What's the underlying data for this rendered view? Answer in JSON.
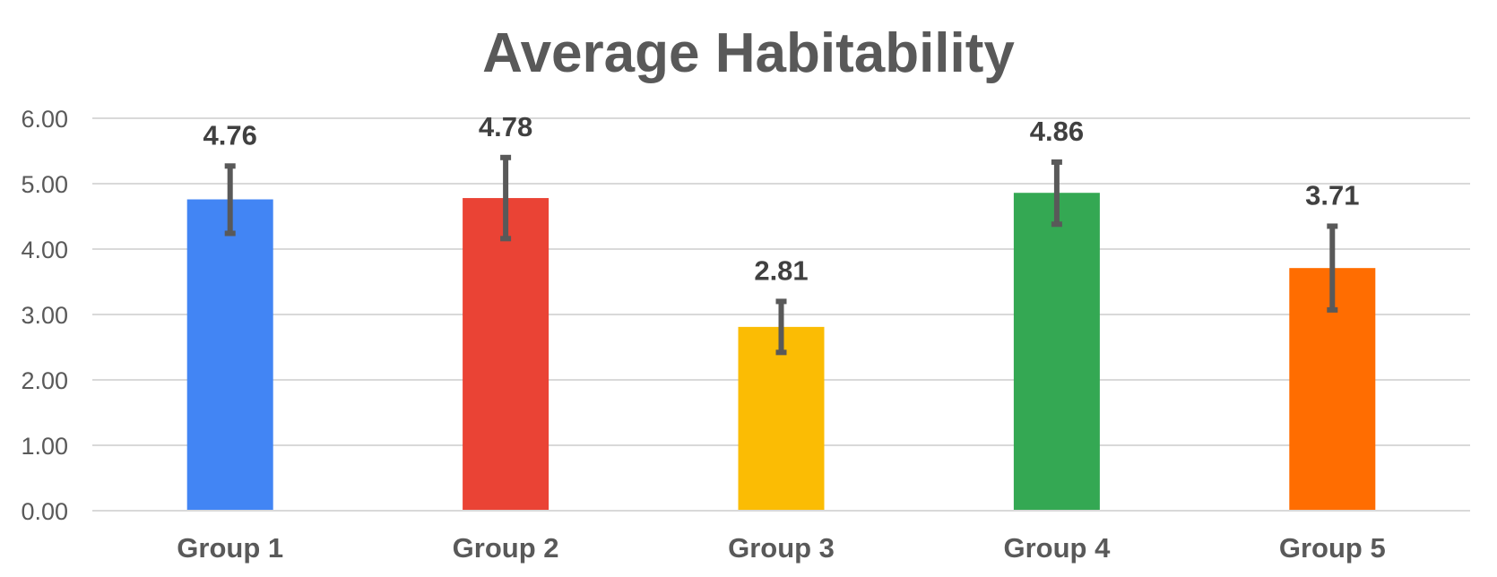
{
  "chart_data": {
    "type": "bar",
    "title": "Average Habitability",
    "xlabel": "",
    "ylabel": "",
    "categories": [
      "Group 1",
      "Group 2",
      "Group 3",
      "Group 4",
      "Group 5"
    ],
    "values": [
      4.76,
      4.78,
      2.81,
      4.86,
      3.71
    ],
    "value_labels": [
      "4.76",
      "4.78",
      "2.81",
      "4.86",
      "3.71"
    ],
    "error_bars": [
      {
        "low": 4.24,
        "high": 5.27
      },
      {
        "low": 4.16,
        "high": 5.4
      },
      {
        "low": 2.42,
        "high": 3.2
      },
      {
        "low": 4.38,
        "high": 5.33
      },
      {
        "low": 3.07,
        "high": 4.35
      }
    ],
    "colors": [
      "#4285f4",
      "#ea4335",
      "#fbbc04",
      "#34a853",
      "#ff6d01"
    ],
    "ylim": [
      0,
      6
    ],
    "yticks": [
      0,
      1,
      2,
      3,
      4,
      5,
      6
    ],
    "ytick_labels": [
      "0.00",
      "1.00",
      "2.00",
      "3.00",
      "4.00",
      "5.00",
      "6.00"
    ],
    "grid": true,
    "legend": "none"
  }
}
